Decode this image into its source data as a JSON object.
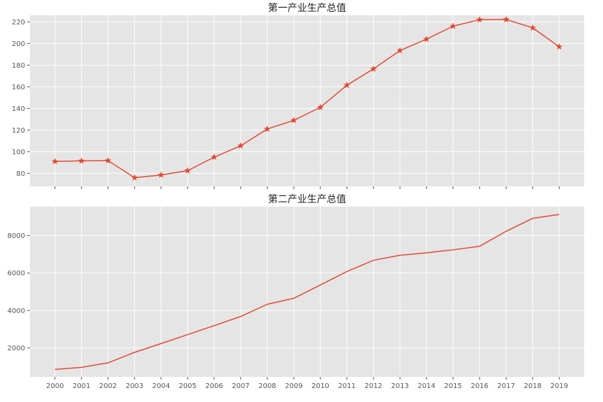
{
  "chart_data": [
    {
      "type": "line",
      "title": "第一产业生产总值",
      "xlabel": "",
      "ylabel": "",
      "x": [
        "2000",
        "2001",
        "2002",
        "2003",
        "2004",
        "2005",
        "2006",
        "2007",
        "2008",
        "2009",
        "2010",
        "2011",
        "2012",
        "2013",
        "2014",
        "2015",
        "2016",
        "2017",
        "2018",
        "2019"
      ],
      "series": [
        {
          "values": [
            91,
            91.5,
            91.8,
            76,
            78.5,
            82.5,
            95,
            105.5,
            121,
            129,
            141,
            161.5,
            176.5,
            193.5,
            204,
            216,
            222,
            222.2,
            214.5,
            197
          ],
          "marker": "star",
          "color": "#E24A33"
        }
      ],
      "ylim": [
        68,
        226
      ],
      "yticks": [
        80,
        100,
        120,
        140,
        160,
        180,
        200,
        220
      ],
      "show_x_tick_labels": false,
      "grid": true,
      "style": "ggplot"
    },
    {
      "type": "line",
      "title": "第二产业生产总值",
      "xlabel": "",
      "ylabel": "",
      "x": [
        "2000",
        "2001",
        "2002",
        "2003",
        "2004",
        "2005",
        "2006",
        "2007",
        "2008",
        "2009",
        "2010",
        "2011",
        "2012",
        "2013",
        "2014",
        "2015",
        "2016",
        "2017",
        "2018",
        "2019"
      ],
      "series": [
        {
          "values": [
            850,
            960,
            1200,
            1760,
            2230,
            2710,
            3190,
            3680,
            4330,
            4650,
            5360,
            6080,
            6680,
            6950,
            7080,
            7240,
            7430,
            8230,
            8920,
            9130
          ],
          "marker": "none",
          "color": "#E24A33"
        }
      ],
      "ylim": [
        450,
        9550
      ],
      "yticks": [
        2000,
        4000,
        6000,
        8000
      ],
      "show_x_tick_labels": true,
      "grid": true,
      "style": "ggplot"
    }
  ]
}
